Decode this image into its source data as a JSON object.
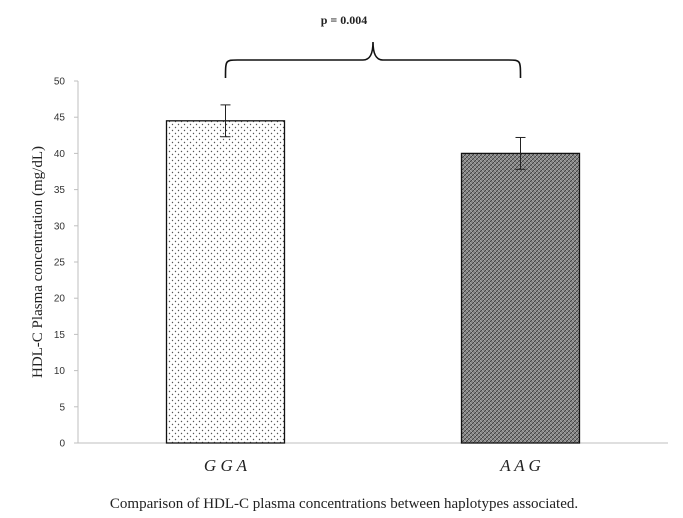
{
  "chart_data": {
    "type": "bar",
    "categories": [
      "G G A",
      "A A G"
    ],
    "values": [
      44.5,
      40.0
    ],
    "errors": [
      2.2,
      2.2
    ],
    "ylabel": "HDL-C Plasma concentration (mg/dL)",
    "ylim": [
      0,
      50
    ],
    "yticks": [
      0,
      5,
      10,
      15,
      20,
      25,
      30,
      35,
      40,
      45,
      50
    ],
    "grid": false,
    "legend": "none",
    "annotation": "p = 0.004",
    "caption": "Comparison of HDL-C plasma concentrations between haplotypes associated.",
    "bar_fills": [
      "dotted-white",
      "crosshatch-gray"
    ]
  }
}
